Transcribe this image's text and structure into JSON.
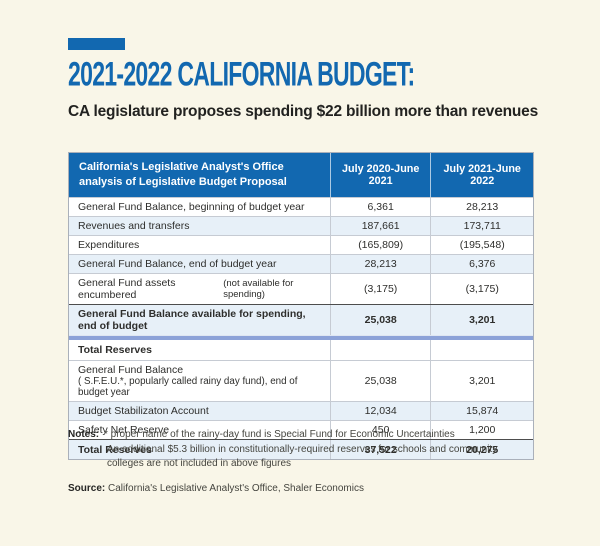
{
  "page": {
    "background_color": "#f9f6e8",
    "accent_color": "#1268b0",
    "row_stripe_color": "#e7f0f8",
    "divider_color": "#8ca2d8"
  },
  "header": {
    "title": "2021-2022 CALIFORNIA BUDGET:",
    "subtitle": "CA legislature proposes spending $22 billion more than revenues"
  },
  "chart_data": {
    "type": "table",
    "title": "2021-2022 CALIFORNIA BUDGET:",
    "subtitle": "CA legislature proposes spending $22 billion more than revenues",
    "columns": [
      "California's Legislative Analyst's Office analysis of Legislative Budget Proposal",
      "July 2020-June 2021",
      "July 2021-June 2022"
    ],
    "rows": [
      {
        "label": "General Fund Balance, beginning of budget year",
        "v1": "6,361",
        "v2": "28,213"
      },
      {
        "label": "Revenues and transfers",
        "v1": "187,661",
        "v2": "173,711"
      },
      {
        "label": "Expenditures",
        "v1": "(165,809)",
        "v2": "(195,548)"
      },
      {
        "label": "General Fund Balance, end of budget year",
        "v1": "28,213",
        "v2": "6,376"
      },
      {
        "label": "General Fund assets encumbered",
        "label_small": "(not available for spending)",
        "v1": "(3,175)",
        "v2": "(3,175)"
      },
      {
        "label": "General Fund Balance available for spending, end of budget",
        "v1": "25,038",
        "v2": "3,201",
        "bold": true
      },
      {
        "label": "Total Reserves",
        "v1": "",
        "v2": "",
        "bold": true
      },
      {
        "label": "General Fund Balance",
        "label_line2": "( S.F.E.U.*, popularly called rainy day fund), end of budget year",
        "v1": "25,038",
        "v2": "3,201"
      },
      {
        "label": "Budget Stabilizaton Account",
        "v1": "12,034",
        "v2": "15,874"
      },
      {
        "label": "Safety Net Reserve",
        "v1": "450",
        "v2": "1,200"
      },
      {
        "label": "Total Reserves",
        "v1": "37,522",
        "v2": "20,275",
        "bold": true
      }
    ],
    "section_break_after_row_index": 5
  },
  "notes": {
    "label": "Notes:",
    "note_1": "* proper name of the rainy-day fund is Special Fund for Economic Uncertainties",
    "note_2": "An additional $5.3 billion in constitutionally-required reserves for schools and community colleges are not included in above figures"
  },
  "source": {
    "label": "Source:",
    "text": "California's Legislative Analyst's Office, Shaler Economics"
  }
}
